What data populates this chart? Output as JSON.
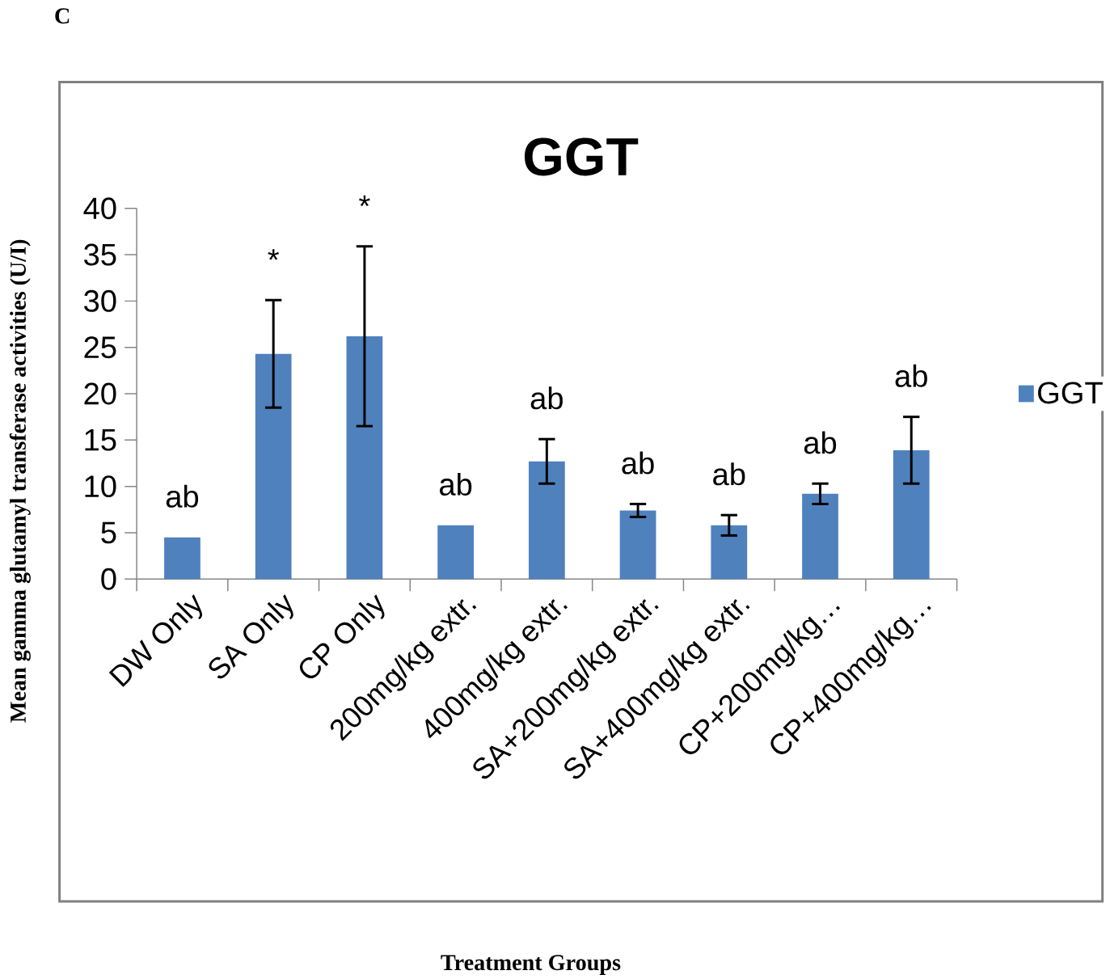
{
  "chart_data": {
    "type": "bar",
    "title": "GGT",
    "ylabel": "Mean gamma glutamyl transferase activities (U/I)",
    "categories": [
      "DW Only",
      "SA Only",
      "CP Only",
      "200mg/kg extr.",
      "400mg/kg extr.",
      "SA+200mg/kg extr.",
      "SA+400mg/kg extr.",
      "CP+200mg/kg…",
      "CP+400mg/kg…"
    ],
    "series": [
      {
        "name": "GGT",
        "color": "#4f81bd",
        "values": [
          4.5,
          24.3,
          26.2,
          5.8,
          12.7,
          7.4,
          5.8,
          9.2,
          13.9
        ],
        "errors": [
          null,
          5.8,
          9.7,
          null,
          2.4,
          0.7,
          1.1,
          1.1,
          3.6
        ]
      }
    ],
    "ylim": [
      0,
      40
    ],
    "yticks": [
      0,
      5,
      10,
      15,
      20,
      25,
      30,
      35,
      40
    ],
    "grid": false,
    "legend": "right",
    "annotations": [
      "C",
      "Treatment Groups",
      "ab",
      "*",
      "*",
      "ab",
      "ab",
      "ab",
      "ab",
      "ab",
      "ab"
    ]
  }
}
